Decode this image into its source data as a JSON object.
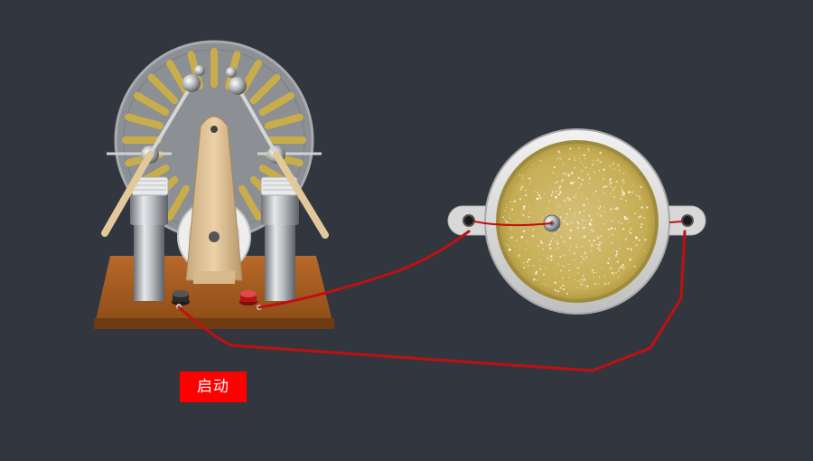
{
  "controls": {
    "start_label": "启动"
  },
  "colors": {
    "background": "#32363f",
    "wire": "#c01010",
    "button": "#ff0000",
    "wood": "#a35a1c",
    "disc": "#8b8d90",
    "sector": "#c9ad4a",
    "dish_liquid": "#c9b35a"
  },
  "icons": {
    "machine": "wimshurst-machine-icon",
    "dish": "petri-dish-icon"
  }
}
